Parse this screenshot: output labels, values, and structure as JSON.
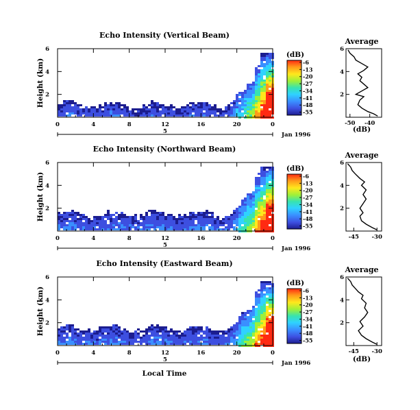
{
  "figure": {
    "date_label": "Jan 1996",
    "bottom_xlabel": "Local Time",
    "colorbar_unit": "(dB)",
    "avg_title": "Average",
    "avg_xlabel": "(dB)"
  },
  "chart_data": [
    {
      "type": "heatmap",
      "title": "Echo Intensity (Vertical Beam)",
      "ylabel": "Height (km)",
      "x_ticks": [
        "0",
        "4",
        "8",
        "12",
        "16",
        "20",
        "0"
      ],
      "day_tick": "5",
      "y_ticks": [
        "6",
        "4",
        "2"
      ],
      "xlim": [
        0,
        24
      ],
      "ylim": [
        0,
        6
      ],
      "colorbar_ticks": [
        "-6",
        "-13",
        "-20",
        "-27",
        "-34",
        "-41",
        "-48",
        "-55"
      ],
      "colorbar_range": [
        -58,
        -4
      ],
      "echo_top_km": 1.2,
      "average_profile": {
        "title": "Average",
        "xlabel": "(dB)",
        "x_ticks": [
          "-50",
          "-40"
        ],
        "xlim": [
          -52,
          -34
        ],
        "y_ticks": [
          "6",
          "4",
          "2"
        ],
        "ylim": [
          0,
          6
        ],
        "points": [
          [
            -36,
            0.1
          ],
          [
            -38,
            0.3
          ],
          [
            -41,
            0.5
          ],
          [
            -44,
            0.8
          ],
          [
            -46,
            1.1
          ],
          [
            -45,
            1.5
          ],
          [
            -43,
            1.8
          ],
          [
            -47,
            2.0
          ],
          [
            -44,
            2.3
          ],
          [
            -41,
            2.6
          ],
          [
            -43,
            2.9
          ],
          [
            -45,
            3.2
          ],
          [
            -44,
            3.5
          ],
          [
            -46,
            3.8
          ],
          [
            -43,
            4.1
          ],
          [
            -41,
            4.4
          ],
          [
            -44,
            4.7
          ],
          [
            -47,
            5.0
          ],
          [
            -48,
            5.3
          ],
          [
            -50,
            5.6
          ],
          [
            -51,
            5.9
          ]
        ]
      }
    },
    {
      "type": "heatmap",
      "title": "Echo Intensity (Northward Beam)",
      "ylabel": "Height (km)",
      "x_ticks": [
        "0",
        "4",
        "8",
        "12",
        "16",
        "20",
        "0"
      ],
      "day_tick": "5",
      "y_ticks": [
        "6",
        "4",
        "2"
      ],
      "xlim": [
        0,
        24
      ],
      "ylim": [
        0,
        6
      ],
      "colorbar_ticks": [
        "-6",
        "-13",
        "-20",
        "-27",
        "-34",
        "-41",
        "-48",
        "-55"
      ],
      "colorbar_range": [
        -58,
        -4
      ],
      "echo_top_km": 1.6,
      "average_profile": {
        "title": "Average",
        "xlabel": "",
        "x_ticks": [
          "-45",
          "-30"
        ],
        "xlim": [
          -50,
          -27
        ],
        "y_ticks": [
          "6",
          "4",
          "2"
        ],
        "ylim": [
          0,
          6
        ],
        "points": [
          [
            -30,
            0.1
          ],
          [
            -33,
            0.3
          ],
          [
            -37,
            0.6
          ],
          [
            -40,
            0.9
          ],
          [
            -41,
            1.3
          ],
          [
            -39,
            1.6
          ],
          [
            -41,
            2.0
          ],
          [
            -39,
            2.4
          ],
          [
            -37,
            2.8
          ],
          [
            -39,
            3.2
          ],
          [
            -37,
            3.6
          ],
          [
            -40,
            4.0
          ],
          [
            -38,
            4.3
          ],
          [
            -41,
            4.6
          ],
          [
            -44,
            5.0
          ],
          [
            -46,
            5.3
          ],
          [
            -47,
            5.6
          ],
          [
            -49,
            5.9
          ]
        ]
      }
    },
    {
      "type": "heatmap",
      "title": "Echo Intensity (Eastward Beam)",
      "ylabel": "Height (km)",
      "x_ticks": [
        "0",
        "4",
        "8",
        "12",
        "16",
        "20",
        "0"
      ],
      "day_tick": "5",
      "y_ticks": [
        "6",
        "4",
        "2"
      ],
      "xlim": [
        0,
        24
      ],
      "ylim": [
        0,
        6
      ],
      "colorbar_ticks": [
        "-6",
        "-13",
        "-20",
        "-27",
        "-34",
        "-41",
        "-48",
        "-55"
      ],
      "colorbar_range": [
        -58,
        -4
      ],
      "echo_top_km": 1.6,
      "average_profile": {
        "title": "Average",
        "xlabel": "(dB)",
        "x_ticks": [
          "-45",
          "-30"
        ],
        "xlim": [
          -50,
          -27
        ],
        "y_ticks": [
          "6",
          "4",
          "2"
        ],
        "ylim": [
          0,
          6
        ],
        "points": [
          [
            -30,
            0.1
          ],
          [
            -33,
            0.3
          ],
          [
            -37,
            0.6
          ],
          [
            -40,
            0.9
          ],
          [
            -42,
            1.3
          ],
          [
            -39,
            1.7
          ],
          [
            -41,
            2.1
          ],
          [
            -38,
            2.5
          ],
          [
            -36,
            2.9
          ],
          [
            -38,
            3.3
          ],
          [
            -37,
            3.7
          ],
          [
            -40,
            4.1
          ],
          [
            -39,
            4.4
          ],
          [
            -42,
            4.7
          ],
          [
            -44,
            5.0
          ],
          [
            -46,
            5.3
          ],
          [
            -47,
            5.6
          ],
          [
            -49,
            5.9
          ]
        ]
      }
    }
  ]
}
